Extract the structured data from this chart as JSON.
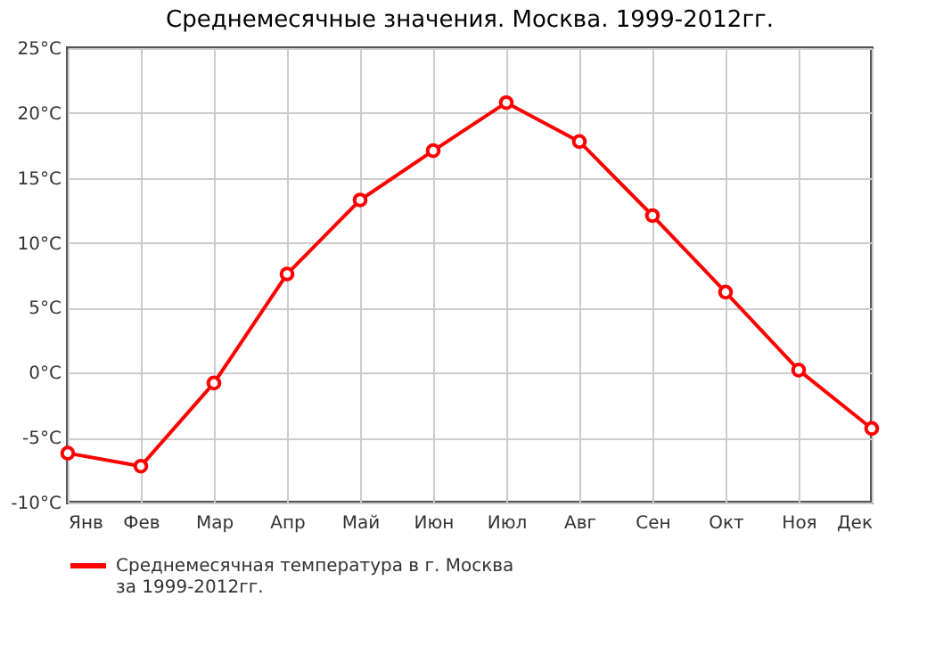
{
  "chart_data": {
    "type": "line",
    "title": "Среднемесячные значения. Москва. 1999-2012гг.",
    "categories": [
      "Янв",
      "Фев",
      "Мар",
      "Апр",
      "Май",
      "Июн",
      "Июл",
      "Авг",
      "Сен",
      "Окт",
      "Ноя",
      "Дек"
    ],
    "series": [
      {
        "name": "Среднемесячная температура в г. Москва\nза 1999-2012гг.",
        "color": "#ff0000",
        "values": [
          -6.2,
          -7.2,
          -0.8,
          7.6,
          13.3,
          17.1,
          20.8,
          17.8,
          12.1,
          6.2,
          0.2,
          -4.3
        ]
      }
    ],
    "ylim": [
      -10,
      25
    ],
    "yticks": [
      {
        "value": -10,
        "label": "-10°C"
      },
      {
        "value": -5,
        "label": "-5°C"
      },
      {
        "value": 0,
        "label": "0°C"
      },
      {
        "value": 5,
        "label": "5°C"
      },
      {
        "value": 10,
        "label": "10°C"
      },
      {
        "value": 15,
        "label": "15°C"
      },
      {
        "value": 20,
        "label": "20°C"
      },
      {
        "value": 25,
        "label": "25°C"
      }
    ],
    "grid": true,
    "legend": "bottom left",
    "marker": "circle",
    "line_style": "solid"
  }
}
